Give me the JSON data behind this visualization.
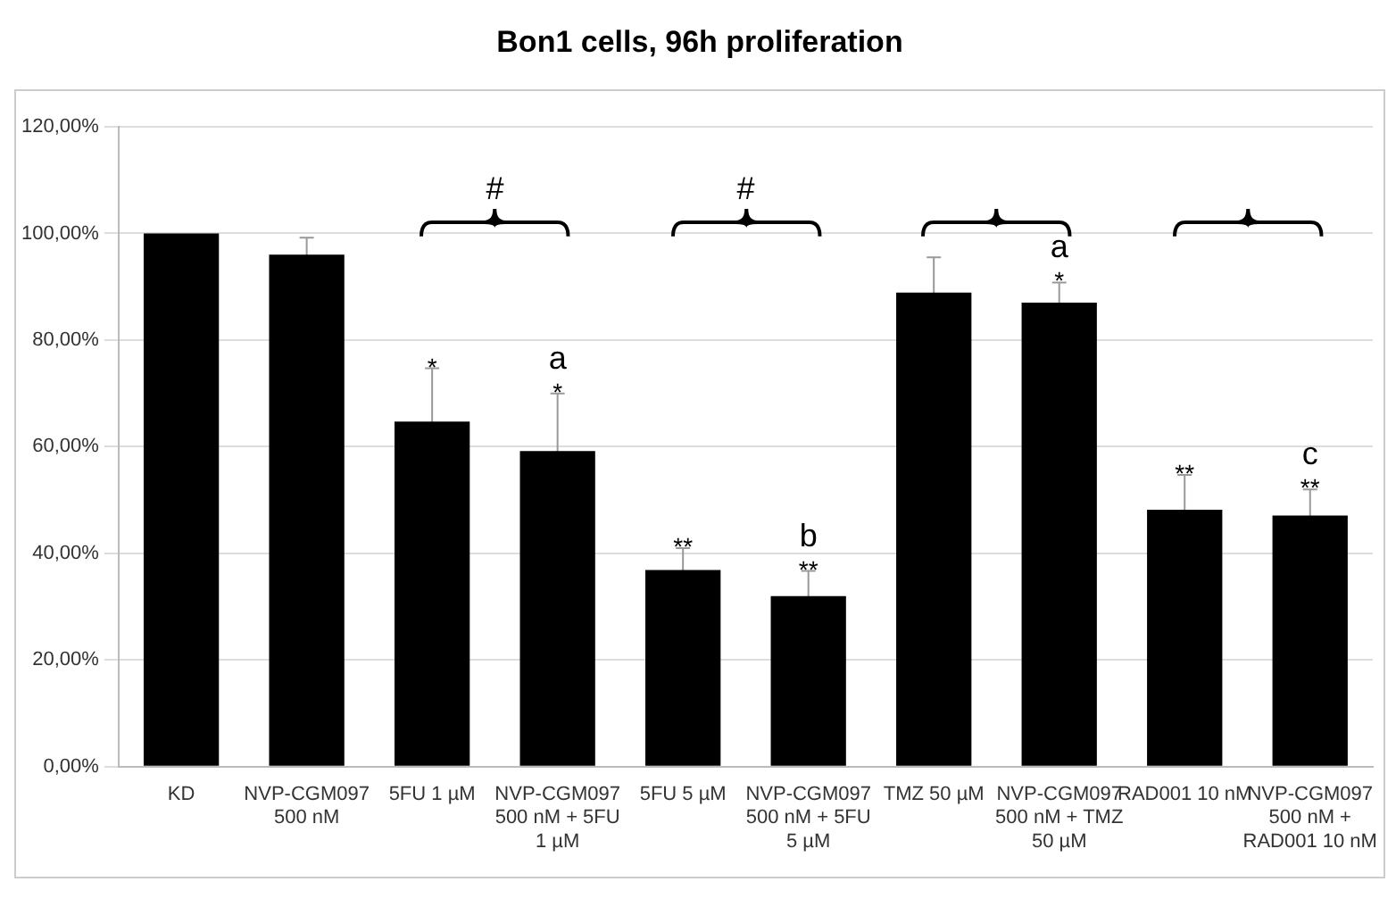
{
  "chart_data": {
    "type": "bar",
    "title": "Bon1 cells, 96h proliferation",
    "categories": [
      "KD",
      "NVP-CGM097 500 nM",
      "5FU 1 µM",
      "NVP-CGM097 500 nM + 5FU 1 µM",
      "5FU 5 µM",
      "NVP-CGM097 500 nM + 5FU 5 µM",
      "TMZ 50 µM",
      "NVP-CGM097 500 nM + TMZ 50 µM",
      "RAD001 10 nM",
      "NVP-CGM097 500 nM + RAD001 10 nM"
    ],
    "values": [
      100,
      96,
      64.7,
      59.2,
      36.9,
      32,
      88.9,
      87,
      48.2,
      47.1
    ],
    "errors": [
      null,
      3.2,
      10,
      10.8,
      4.1,
      4.7,
      6.6,
      3.8,
      6.5,
      4.9
    ],
    "color": "#000000",
    "ylim": [
      0,
      120
    ],
    "yticks": [
      {
        "value": 0,
        "label": "0,00%"
      },
      {
        "value": 20,
        "label": "20,00%"
      },
      {
        "value": 40,
        "label": "40,00%"
      },
      {
        "value": 60,
        "label": "60,00%"
      },
      {
        "value": 80,
        "label": "80,00%"
      },
      {
        "value": 100,
        "label": "100,00%"
      },
      {
        "value": 120,
        "label": "120,00%"
      }
    ],
    "grid": "y",
    "annotations": [
      {
        "text": "*",
        "x": "5FU 1 µM",
        "y": 64.7
      },
      {
        "text": "*",
        "x": "NVP-CGM097 500 nM + 5FU 1 µM",
        "y": 59.2
      },
      {
        "text": "a",
        "x": "NVP-CGM097 500 nM + 5FU 1 µM",
        "y": 59.2
      },
      {
        "text": "**",
        "x": "5FU 5 µM",
        "y": 36.9
      },
      {
        "text": "**",
        "x": "NVP-CGM097 500 nM + 5FU 5 µM",
        "y": 32
      },
      {
        "text": "b",
        "x": "NVP-CGM097 500 nM + 5FU 5 µM",
        "y": 32
      },
      {
        "text": "*",
        "x": "NVP-CGM097 500 nM + TMZ 50 µM",
        "y": 87
      },
      {
        "text": "a",
        "x": "NVP-CGM097 500 nM + TMZ 50 µM",
        "y": 87
      },
      {
        "text": "**",
        "x": "RAD001 10 nM",
        "y": 48.2
      },
      {
        "text": "**",
        "x": "NVP-CGM097 500 nM + RAD001 10 nM",
        "y": 47.1
      },
      {
        "text": "c",
        "x": "NVP-CGM097 500 nM + RAD001 10 nM",
        "y": 47.1
      },
      "#",
      "#"
    ]
  }
}
